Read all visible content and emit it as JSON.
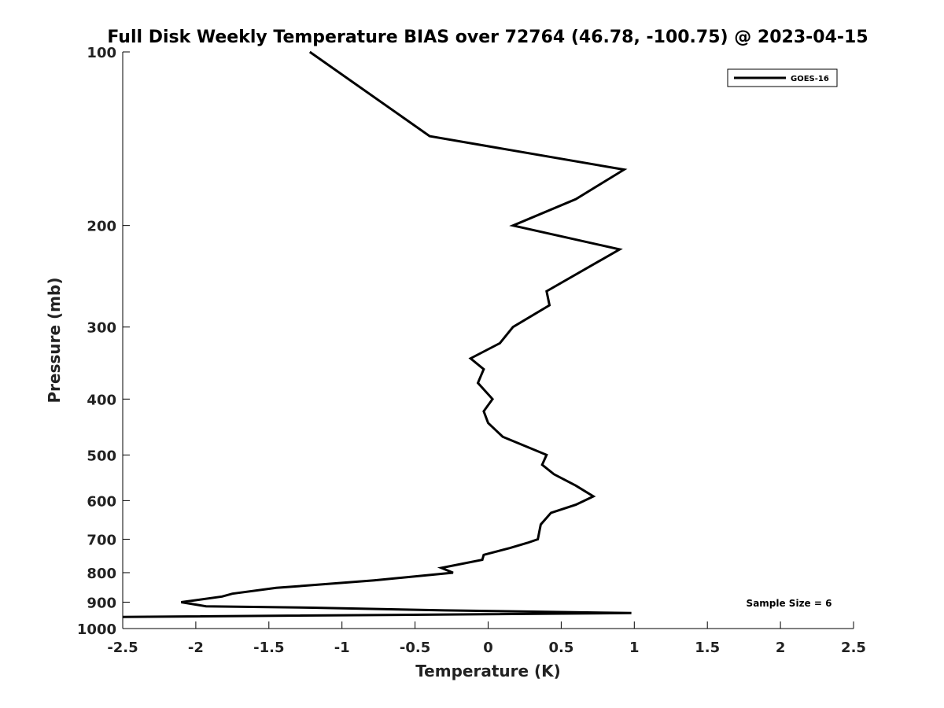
{
  "chart_data": {
    "type": "line",
    "title": "Full Disk Weekly Temperature BIAS over 72764 (46.78, -100.75) @ 2023-04-15",
    "xlabel": "Temperature (K)",
    "ylabel": "Pressure (mb)",
    "xlim": [
      -2.5,
      2.5
    ],
    "ylim": [
      100,
      1000
    ],
    "y_scale": "log",
    "y_reversed": true,
    "grid": false,
    "legend_position": "top-right",
    "xticks": [
      -2.5,
      -2,
      -1.5,
      -1,
      -0.5,
      0,
      0.5,
      1,
      1.5,
      2,
      2.5
    ],
    "xtick_labels": [
      "-2.5",
      "-2",
      "-1.5",
      "-1",
      "-0.5",
      "0",
      "0.5",
      "1",
      "1.5",
      "2",
      "2.5"
    ],
    "yticks": [
      100,
      200,
      300,
      400,
      500,
      600,
      700,
      800,
      900,
      1000
    ],
    "ytick_labels": [
      "100",
      "200",
      "300",
      "400",
      "500",
      "600",
      "700",
      "800",
      "900",
      "1000"
    ],
    "series": [
      {
        "name": "GOES-16",
        "color": "#000000",
        "points": [
          [
            -1.22,
            100
          ],
          [
            -0.4,
            140
          ],
          [
            0.93,
            160
          ],
          [
            0.6,
            180
          ],
          [
            0.17,
            200
          ],
          [
            0.9,
            220
          ],
          [
            0.4,
            260
          ],
          [
            0.42,
            275
          ],
          [
            0.17,
            300
          ],
          [
            0.08,
            320
          ],
          [
            -0.12,
            340
          ],
          [
            -0.03,
            355
          ],
          [
            -0.07,
            375
          ],
          [
            0.03,
            400
          ],
          [
            -0.03,
            420
          ],
          [
            0.0,
            440
          ],
          [
            0.1,
            465
          ],
          [
            0.4,
            500
          ],
          [
            0.37,
            520
          ],
          [
            0.45,
            540
          ],
          [
            0.6,
            565
          ],
          [
            0.72,
            590
          ],
          [
            0.6,
            610
          ],
          [
            0.43,
            630
          ],
          [
            0.36,
            660
          ],
          [
            0.35,
            680
          ],
          [
            0.34,
            700
          ],
          [
            0.27,
            710
          ],
          [
            0.15,
            725
          ],
          [
            -0.03,
            745
          ],
          [
            -0.04,
            760
          ],
          [
            -0.32,
            785
          ],
          [
            -0.24,
            800
          ],
          [
            -0.78,
            825
          ],
          [
            -1.45,
            850
          ],
          [
            -1.75,
            870
          ],
          [
            -1.82,
            880
          ],
          [
            -2.1,
            900
          ],
          [
            -1.93,
            915
          ],
          [
            -1.2,
            920
          ],
          [
            -0.3,
            930
          ],
          [
            0.98,
            940
          ],
          [
            -2.5,
            955
          ]
        ]
      }
    ],
    "annotations": [
      "Sample Size = 6"
    ]
  }
}
